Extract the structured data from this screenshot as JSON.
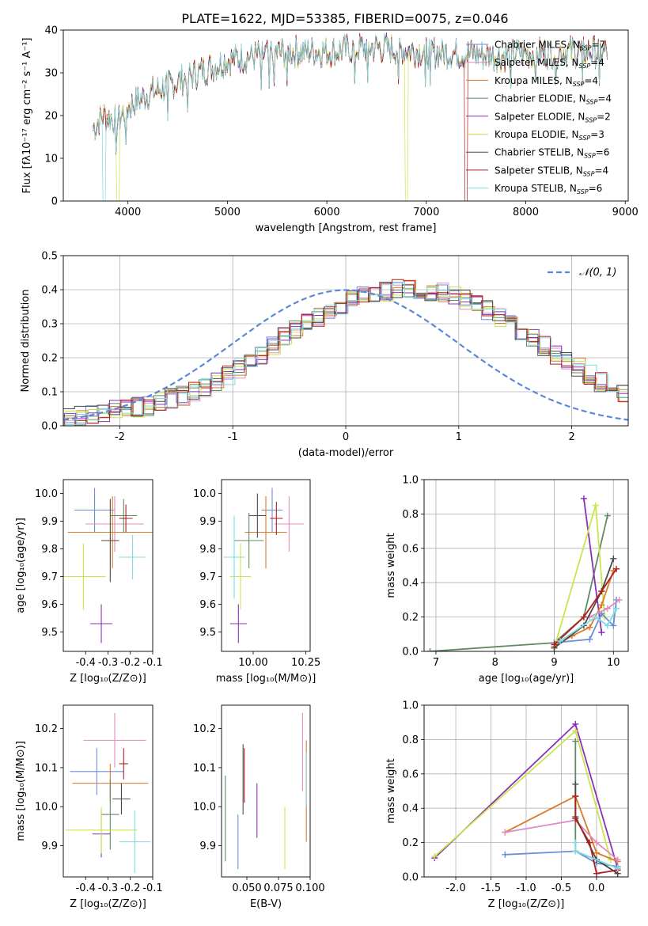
{
  "title": "PLATE=1622, MJD=53385, FIBERID=0075, z=0.046",
  "colors": {
    "blue": "#6a8fd8",
    "pink": "#e08cc0",
    "orange": "#d97a2b",
    "green": "#5f8a64",
    "purple": "#8e2fb8",
    "lime": "#c8e64a",
    "dark": "#4a4a4a",
    "red": "#b01e1e",
    "cyan": "#7fdce0"
  },
  "chart_data": [
    {
      "type": "line",
      "xlabel": "wavelength [Angstrom, rest frame]",
      "ylabel": "Flux [fλ10⁻¹⁷ erg cm⁻² s⁻¹ A⁻¹]",
      "xlim": [
        3350,
        9030
      ],
      "ylim": [
        0,
        40
      ],
      "xticks": [
        4000,
        5000,
        6000,
        7000,
        8000,
        9000
      ],
      "yticks": [
        0,
        10,
        20,
        30,
        40
      ],
      "legend_position": "upper-right",
      "legend": [
        {
          "name": "Chabrier MILES",
          "sub": "SSP",
          "n": "7"
        },
        {
          "name": "Salpeter MILES",
          "sub": "SSP",
          "n": "4"
        },
        {
          "name": "Kroupa MILES",
          "sub": "SSP",
          "n": "4"
        },
        {
          "name": "Chabrier ELODIE",
          "sub": "SSP",
          "n": "4"
        },
        {
          "name": "Salpeter ELODIE",
          "sub": "SSP",
          "n": "2"
        },
        {
          "name": "Kroupa ELODIE",
          "sub": "SSP",
          "n": "3"
        },
        {
          "name": "Chabrier STELIB",
          "sub": "SSP",
          "n": "6"
        },
        {
          "name": "Salpeter STELIB",
          "sub": "SSP",
          "n": "4"
        },
        {
          "name": "Kroupa STELIB",
          "sub": "SSP",
          "n": "6"
        }
      ],
      "continuum": {
        "x": [
          3650,
          3750,
          3900,
          4000,
          4200,
          4500,
          4800,
          5000,
          5300,
          5600,
          6000,
          6500,
          7000,
          7400,
          7700,
          8000,
          8400,
          8800
        ],
        "y": [
          17,
          20,
          19,
          22,
          25,
          28,
          31,
          33,
          34,
          35,
          35,
          36,
          35,
          34.5,
          34,
          34.5,
          35,
          35
        ]
      },
      "cutoffs": [
        {
          "series": "Kroupa ELODIE",
          "x": 6800
        },
        {
          "series": "Salpeter STELIB",
          "x": 7400
        },
        {
          "series": "Kroupa STELIB",
          "x": 3760
        },
        {
          "series": "Kroupa ELODIE",
          "x": 3900
        }
      ]
    },
    {
      "type": "step",
      "xlabel": "(data-model)/error",
      "ylabel": "Normed distribution",
      "xlim": [
        -2.5,
        2.5
      ],
      "ylim": [
        0,
        0.5
      ],
      "xticks": [
        -2,
        -1,
        0,
        1,
        2
      ],
      "yticks": [
        0.0,
        0.1,
        0.2,
        0.3,
        0.4,
        0.5
      ],
      "grid": true,
      "legend_position": "upper-right",
      "legend": [
        {
          "name": "𝒩(0, 1)",
          "style": "dashed"
        }
      ],
      "bin_width": 0.1,
      "base_hist": [
        0.025,
        0.03,
        0.035,
        0.04,
        0.045,
        0.05,
        0.055,
        0.06,
        0.07,
        0.08,
        0.09,
        0.1,
        0.115,
        0.13,
        0.15,
        0.17,
        0.19,
        0.21,
        0.235,
        0.26,
        0.28,
        0.3,
        0.32,
        0.34,
        0.355,
        0.37,
        0.38,
        0.39,
        0.395,
        0.4,
        0.4,
        0.4,
        0.395,
        0.39,
        0.38,
        0.37,
        0.355,
        0.34,
        0.32,
        0.3,
        0.28,
        0.26,
        0.235,
        0.21,
        0.19,
        0.17,
        0.15,
        0.13,
        0.115,
        0.1
      ]
    },
    {
      "type": "errorbar",
      "xlabel": "Z [log₁₀(Z/Z⊙)]",
      "ylabel": "age  [log₁₀(age/yr)]",
      "xlim": [
        -0.5,
        -0.1
      ],
      "ylim": [
        9.43,
        10.05
      ],
      "xticks": [
        -0.4,
        -0.3,
        -0.2,
        -0.1
      ],
      "yticks": [
        9.5,
        9.6,
        9.7,
        9.8,
        9.9,
        10.0
      ],
      "points": [
        {
          "c": "blue",
          "x": -0.36,
          "y": 9.94,
          "xe": 0.09,
          "ye": 0.08
        },
        {
          "c": "pink",
          "x": -0.27,
          "y": 9.89,
          "xe": 0.13,
          "ye": 0.1
        },
        {
          "c": "orange",
          "x": -0.28,
          "y": 9.86,
          "xe": 0.2,
          "ye": 0.13
        },
        {
          "c": "green",
          "x": -0.23,
          "y": 9.92,
          "xe": 0.06,
          "ye": 0.06
        },
        {
          "c": "purple",
          "x": -0.33,
          "y": 9.53,
          "xe": 0.05,
          "ye": 0.07
        },
        {
          "c": "lime",
          "x": -0.41,
          "y": 9.7,
          "xe": 0.1,
          "ye": 0.12
        },
        {
          "c": "dark",
          "x": -0.29,
          "y": 9.83,
          "xe": 0.04,
          "ye": 0.15
        },
        {
          "c": "red",
          "x": -0.22,
          "y": 9.91,
          "xe": 0.03,
          "ye": 0.05
        },
        {
          "c": "cyan",
          "x": -0.19,
          "y": 9.77,
          "xe": 0.06,
          "ye": 0.08
        }
      ]
    },
    {
      "type": "errorbar",
      "xlabel": "mass [log₁₀(M/M⊙)]",
      "ylabel": "",
      "xlim": [
        9.85,
        10.27
      ],
      "ylim": [
        9.43,
        10.05
      ],
      "xticks": [
        10.0,
        10.25
      ],
      "yticks": [
        9.5,
        9.6,
        9.7,
        9.8,
        9.9,
        10.0
      ],
      "points": [
        {
          "c": "blue",
          "x": 10.09,
          "y": 9.94,
          "xe": 0.05,
          "ye": 0.08
        },
        {
          "c": "pink",
          "x": 10.17,
          "y": 9.89,
          "xe": 0.07,
          "ye": 0.1
        },
        {
          "c": "orange",
          "x": 10.06,
          "y": 9.86,
          "xe": 0.1,
          "ye": 0.13
        },
        {
          "c": "green",
          "x": 9.98,
          "y": 9.83,
          "xe": 0.07,
          "ye": 0.1
        },
        {
          "c": "purple",
          "x": 9.93,
          "y": 9.53,
          "xe": 0.04,
          "ye": 0.07
        },
        {
          "c": "lime",
          "x": 9.94,
          "y": 9.7,
          "xe": 0.05,
          "ye": 0.12
        },
        {
          "c": "dark",
          "x": 10.02,
          "y": 9.92,
          "xe": 0.04,
          "ye": 0.08
        },
        {
          "c": "red",
          "x": 10.11,
          "y": 9.91,
          "xe": 0.03,
          "ye": 0.06
        },
        {
          "c": "cyan",
          "x": 9.91,
          "y": 9.77,
          "xe": 0.05,
          "ye": 0.15
        }
      ]
    },
    {
      "type": "line",
      "xlabel": "age  [log₁₀(age/yr)]",
      "ylabel": "mass weight",
      "xlim": [
        6.8,
        10.25
      ],
      "ylim": [
        0,
        1
      ],
      "xticks": [
        7,
        8,
        9,
        10
      ],
      "yticks": [
        0.0,
        0.2,
        0.4,
        0.6,
        0.8,
        1.0
      ],
      "grid": true,
      "series": [
        {
          "c": "green",
          "x": [
            6.9,
            9.0,
            9.5,
            9.9
          ],
          "y": [
            0.0,
            0.05,
            0.2,
            0.79
          ]
        },
        {
          "c": "purple",
          "x": [
            9.5,
            9.8
          ],
          "y": [
            0.89,
            0.11
          ]
        },
        {
          "c": "lime",
          "x": [
            9.0,
            9.7,
            9.85
          ],
          "y": [
            0.02,
            0.85,
            0.2
          ]
        },
        {
          "c": "blue",
          "x": [
            9.0,
            9.6,
            9.8,
            10.0,
            10.05
          ],
          "y": [
            0.05,
            0.07,
            0.22,
            0.15,
            0.3
          ]
        },
        {
          "c": "orange",
          "x": [
            9.0,
            9.3,
            9.6,
            9.8,
            10.0
          ],
          "y": [
            0.03,
            0.09,
            0.14,
            0.27,
            0.47
          ]
        },
        {
          "c": "pink",
          "x": [
            9.6,
            9.9,
            10.1
          ],
          "y": [
            0.2,
            0.25,
            0.3
          ]
        },
        {
          "c": "dark",
          "x": [
            9.0,
            9.5,
            9.8,
            10.0
          ],
          "y": [
            0.02,
            0.15,
            0.35,
            0.54
          ]
        },
        {
          "c": "red",
          "x": [
            9.0,
            9.5,
            9.8,
            10.05
          ],
          "y": [
            0.04,
            0.2,
            0.35,
            0.48
          ]
        },
        {
          "c": "cyan",
          "x": [
            9.1,
            9.7,
            9.9,
            10.05
          ],
          "y": [
            0.06,
            0.2,
            0.15,
            0.25
          ]
        }
      ]
    },
    {
      "type": "errorbar",
      "xlabel": "Z [log₁₀(Z/Z⊙)]",
      "ylabel": "mass [log₁₀(M/M⊙)]",
      "xlim": [
        -0.5,
        -0.1
      ],
      "ylim": [
        9.82,
        10.26
      ],
      "xticks": [
        -0.4,
        -0.3,
        -0.2,
        -0.1
      ],
      "yticks": [
        9.9,
        10.0,
        10.1,
        10.2
      ],
      "points": [
        {
          "c": "blue",
          "x": -0.35,
          "y": 10.09,
          "xe": 0.12,
          "ye": 0.06
        },
        {
          "c": "pink",
          "x": -0.27,
          "y": 10.17,
          "xe": 0.14,
          "ye": 0.07
        },
        {
          "c": "orange",
          "x": -0.29,
          "y": 10.06,
          "xe": 0.17,
          "ye": 0.05
        },
        {
          "c": "green",
          "x": -0.29,
          "y": 9.98,
          "xe": 0.04,
          "ye": 0.09
        },
        {
          "c": "purple",
          "x": -0.33,
          "y": 9.93,
          "xe": 0.04,
          "ye": 0.06
        },
        {
          "c": "lime",
          "x": -0.33,
          "y": 9.94,
          "xe": 0.16,
          "ye": 0.06
        },
        {
          "c": "dark",
          "x": -0.24,
          "y": 10.02,
          "xe": 0.04,
          "ye": 0.04
        },
        {
          "c": "red",
          "x": -0.23,
          "y": 10.11,
          "xe": 0.02,
          "ye": 0.04
        },
        {
          "c": "cyan",
          "x": -0.18,
          "y": 9.91,
          "xe": 0.07,
          "ye": 0.08
        }
      ]
    },
    {
      "type": "errorbar",
      "xlabel": "E(B-V)",
      "ylabel": "",
      "xlim": [
        0.03,
        0.1
      ],
      "ylim": [
        9.82,
        10.26
      ],
      "xticks": [
        0.05,
        0.075,
        0.1
      ],
      "xticklabels": [
        "0.050",
        "0.075",
        "0.100"
      ],
      "yticks": [
        9.9,
        10.0,
        10.1,
        10.2
      ],
      "points": [
        {
          "c": "green",
          "x": 0.033,
          "y": 9.97,
          "xe": 0,
          "ye": 0.11
        },
        {
          "c": "blue",
          "x": 0.043,
          "y": 9.91,
          "xe": 0,
          "ye": 0.07
        },
        {
          "c": "dark",
          "x": 0.047,
          "y": 10.07,
          "xe": 0,
          "ye": 0.09
        },
        {
          "c": "red",
          "x": 0.048,
          "y": 10.08,
          "xe": 0,
          "ye": 0.07
        },
        {
          "c": "purple",
          "x": 0.058,
          "y": 9.99,
          "xe": 0,
          "ye": 0.07
        },
        {
          "c": "lime",
          "x": 0.08,
          "y": 9.92,
          "xe": 0,
          "ye": 0.08
        },
        {
          "c": "pink",
          "x": 0.094,
          "y": 10.14,
          "xe": 0,
          "ye": 0.1
        },
        {
          "c": "orange",
          "x": 0.097,
          "y": 10.04,
          "xe": 0,
          "ye": 0.13
        },
        {
          "c": "cyan",
          "x": 0.097,
          "y": 10.07,
          "xe": 0,
          "ye": 0.07
        }
      ]
    },
    {
      "type": "line",
      "xlabel": "Z [log₁₀(Z/Z⊙)]",
      "ylabel": "mass weight",
      "xlim": [
        -2.45,
        0.45
      ],
      "ylim": [
        0,
        1
      ],
      "xticks": [
        -2.0,
        -1.5,
        -1.0,
        -0.5,
        0.0
      ],
      "yticks": [
        0.0,
        0.2,
        0.4,
        0.6,
        0.8,
        1.0
      ],
      "grid": true,
      "series": [
        {
          "c": "purple",
          "x": [
            -2.3,
            -0.3,
            0.3
          ],
          "y": [
            0.11,
            0.89,
            0.05
          ]
        },
        {
          "c": "lime",
          "x": [
            -2.3,
            -0.3,
            0.2
          ],
          "y": [
            0.12,
            0.85,
            0.1
          ]
        },
        {
          "c": "blue",
          "x": [
            -1.3,
            -0.3,
            0.0,
            0.3
          ],
          "y": [
            0.13,
            0.15,
            0.08,
            0.06
          ]
        },
        {
          "c": "orange",
          "x": [
            -1.3,
            -0.3,
            0.0,
            0.3
          ],
          "y": [
            0.26,
            0.47,
            0.14,
            0.09
          ]
        },
        {
          "c": "pink",
          "x": [
            -1.3,
            -0.3,
            0.0,
            0.3
          ],
          "y": [
            0.26,
            0.33,
            0.2,
            0.1
          ]
        },
        {
          "c": "green",
          "x": [
            -0.3,
            -0.3,
            0.0,
            0.3
          ],
          "y": [
            0.79,
            0.15,
            0.1,
            0.02
          ]
        },
        {
          "c": "dark",
          "x": [
            -0.3,
            -0.3,
            0.0,
            0.3
          ],
          "y": [
            0.54,
            0.35,
            0.1,
            0.02
          ]
        },
        {
          "c": "red",
          "x": [
            -0.3,
            -0.3,
            -0.1,
            0.0,
            0.3
          ],
          "y": [
            0.47,
            0.34,
            0.2,
            0.02,
            0.04
          ]
        },
        {
          "c": "cyan",
          "x": [
            -0.3,
            -0.3,
            0.3
          ],
          "y": [
            0.2,
            0.15,
            0.05
          ]
        }
      ]
    }
  ]
}
